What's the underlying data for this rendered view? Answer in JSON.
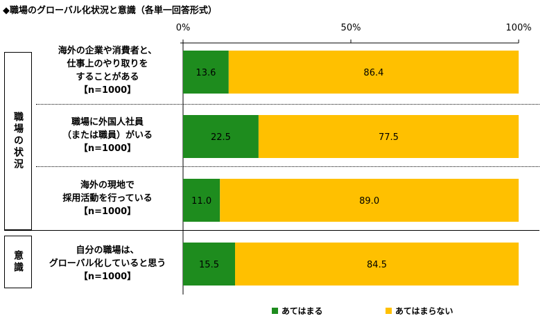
{
  "title": "◆職場のグローバル化状況と意識（各単一回答形式）",
  "axis": {
    "ticks": [
      "0%",
      "50%",
      "100%"
    ]
  },
  "groups": [
    {
      "label": "職場の状況"
    },
    {
      "label": "意識"
    }
  ],
  "colors": {
    "yes": "#1E8C1E",
    "no": "#FFC000"
  },
  "chart_data": {
    "type": "bar",
    "orientation": "horizontal-stacked-100",
    "categories": [
      "海外の企業や消費者と、仕事上のやり取りをすることがある【n=1000】",
      "職場に外国人社員（または職員）がいる【n=1000】",
      "海外の現地で採用活動を行っている【n=1000】",
      "自分の職場は、グローバル化していると思う【n=1000】"
    ],
    "series": [
      {
        "name": "あてはまる",
        "values": [
          13.6,
          22.5,
          11.0,
          15.5
        ]
      },
      {
        "name": "あてはまらない",
        "values": [
          86.4,
          77.5,
          89.0,
          84.5
        ]
      }
    ],
    "xlim": [
      0,
      100
    ],
    "xticks": [
      "0%",
      "50%",
      "100%"
    ],
    "legend": "bottom"
  },
  "rows": [
    {
      "lines": [
        "海外の企業や消費者と、",
        "仕事上のやり取りを",
        "することがある",
        "【n=1000】"
      ],
      "yes_label": "13.6",
      "no_label": "86.4"
    },
    {
      "lines": [
        "職場に外国人社員",
        "（または職員）がいる",
        "【n=1000】"
      ],
      "yes_label": "22.5",
      "no_label": "77.5"
    },
    {
      "lines": [
        "海外の現地で",
        "採用活動を行っている",
        "【n=1000】"
      ],
      "yes_label": "11.0",
      "no_label": "89.0"
    },
    {
      "lines": [
        "自分の職場は、",
        "グローバル化していると思う",
        "【n=1000】"
      ],
      "yes_label": "15.5",
      "no_label": "84.5"
    }
  ],
  "legend": {
    "yes": "あてはまる",
    "no": "あてはまらない"
  }
}
